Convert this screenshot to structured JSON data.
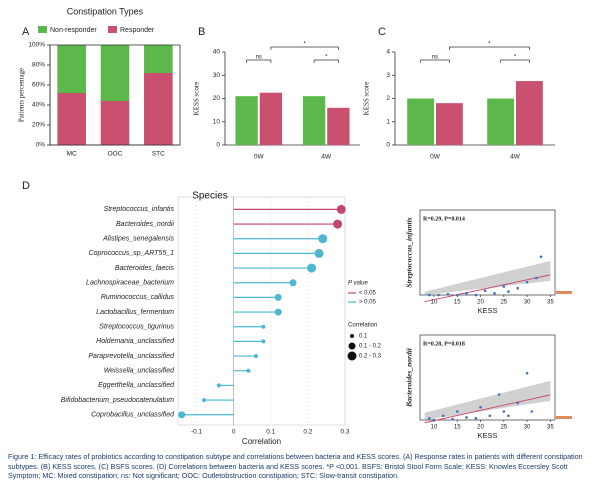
{
  "panel_labels": [
    "A",
    "B",
    "C",
    "D"
  ],
  "chart_data": [
    {
      "type": "bar",
      "stacked": true,
      "title": "Constipation Types",
      "ylabel": "Patients percentage",
      "categories": [
        "MC",
        "OOC",
        "STC"
      ],
      "series": [
        {
          "name": "Non-responder",
          "color": "#5cb84a",
          "values": [
            48,
            56,
            28
          ]
        },
        {
          "name": "Responder",
          "color": "#c9506f",
          "values": [
            52,
            44,
            72
          ]
        }
      ],
      "ylim": [
        0,
        100
      ],
      "yticks": [
        {
          "value": 0,
          "label": "0%"
        },
        {
          "value": 20,
          "label": "20%"
        },
        {
          "value": 40,
          "label": "40%"
        },
        {
          "value": 60,
          "label": "60%"
        },
        {
          "value": 80,
          "label": "80%"
        },
        {
          "value": 100,
          "label": "100%"
        }
      ]
    },
    {
      "type": "bar",
      "ylabel": "KESS score",
      "categories": [
        "0W",
        "4W"
      ],
      "series": [
        {
          "color": "#5cb84a",
          "values": [
            21,
            21
          ]
        },
        {
          "color": "#c9506f",
          "values": [
            22.5,
            16
          ]
        }
      ],
      "ylim": [
        0,
        40
      ],
      "yticks": [
        0,
        10,
        20,
        30,
        40
      ],
      "annotations": [
        "ns",
        "*",
        "*"
      ]
    },
    {
      "type": "bar",
      "ylabel": "KESS score",
      "categories": [
        "0W",
        "4W"
      ],
      "series": [
        {
          "color": "#5cb84a",
          "values": [
            2.0,
            2.0
          ]
        },
        {
          "color": "#c9506f",
          "values": [
            1.8,
            2.75
          ]
        }
      ],
      "ylim": [
        0,
        4
      ],
      "yticks": [
        0,
        1,
        2,
        3,
        4
      ],
      "annotations": [
        "ns",
        "*",
        "*"
      ]
    },
    {
      "type": "lollipop",
      "title": "Species",
      "xlabel": "Correlation",
      "categories": [
        "Streptococcus_infantis",
        "Bacteroides_nordii",
        "Alistipes_senegalensis",
        "Coprococcus_sp_ART55_1",
        "Bacteroides_faecis",
        "Lachnospiraceae_bacterium",
        "Ruminococcus_callidus",
        "Lactobacillus_fermentum",
        "Streptococcus_tigurinus",
        "Holdemania_unclassified",
        "Paraprevotella_unclassified",
        "Weissella_unclassified",
        "Eggerthella_unclassified",
        "Bifidobacterium_pseudocatenulatum",
        "Coprobacillus_unclassified"
      ],
      "values": [
        0.29,
        0.28,
        0.24,
        0.23,
        0.21,
        0.16,
        0.12,
        0.12,
        0.08,
        0.08,
        0.06,
        0.04,
        -0.04,
        -0.08,
        -0.14
      ],
      "groups": [
        0,
        0,
        1,
        1,
        1,
        1,
        1,
        1,
        1,
        1,
        1,
        1,
        1,
        1,
        1
      ],
      "xlim": [
        -0.15,
        0.3
      ],
      "xticks": [
        -0.1,
        0,
        0.1,
        0.2,
        0.3
      ],
      "legend": {
        "p_title": "P value",
        "p_items": [
          {
            "label": "< 0.05",
            "color": "#c2466e"
          },
          {
            "label": "> 0.05",
            "color": "#4bb8cf"
          }
        ],
        "size_title": "Correlation",
        "size_items": [
          "0.1",
          "0.1 - 0.2",
          "0.2 - 0.3"
        ]
      }
    },
    {
      "type": "scatter",
      "ylabel": "Streptococcus_infantis",
      "xlabel": "KESS",
      "annotation": "R=0.29, P=0.014",
      "x": [
        9,
        11,
        13,
        15,
        17,
        19,
        21,
        23,
        25,
        26,
        28,
        30,
        32,
        33
      ],
      "values": [
        0,
        0,
        0.01,
        0,
        0.02,
        0,
        0.05,
        0.02,
        0.1,
        0.04,
        0.08,
        0.15,
        0.2,
        0.45
      ],
      "color": "#3a6fc4",
      "xlim": [
        7,
        36
      ],
      "ylim": [
        0,
        1
      ],
      "xticks": [
        10,
        15,
        20,
        25,
        30,
        35
      ]
    },
    {
      "type": "scatter",
      "ylabel": "Bacteroides_nordii",
      "xlabel": "KESS",
      "annotation": "R=0.28, P=0.018",
      "x": [
        9,
        10,
        12,
        14,
        15,
        17,
        19,
        20,
        22,
        24,
        25,
        26,
        28,
        30,
        31
      ],
      "values": [
        0.02,
        0,
        0.05,
        0.01,
        0.1,
        0.03,
        0.02,
        0.15,
        0.05,
        0.3,
        0.1,
        0.05,
        0.2,
        0.55,
        0.1
      ],
      "color": "#3a6fc4",
      "xlim": [
        7,
        36
      ],
      "ylim": [
        0,
        1
      ],
      "xticks": [
        10,
        15,
        20,
        25,
        30,
        35
      ]
    }
  ],
  "caption": "Figure 1: Efficacy rates of probiotics according to constipation subtype and correlations between bacteria and KESS scores. (A) Response rates in patients with different constipation subtypes. (B) KESS scores. (C) BSFS scores. (D) Correlations between bacteria and KESS scores. *P <0.001. BSFS: Bristol Stool Form Scale; KESS: Knowles Eccersley Scott Symptom; MC: Mixed constipation; ns: Not significant; OOC: Outletobstruction constipation; STC: Slow-transit constipation."
}
